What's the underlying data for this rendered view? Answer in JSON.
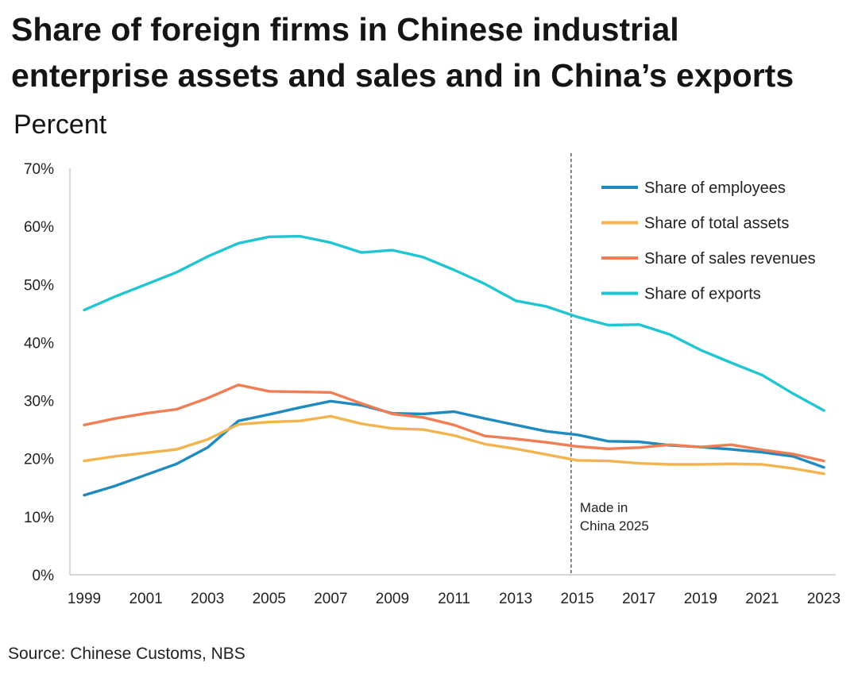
{
  "title": "Share of foreign firms in Chinese industrial enterprise assets and sales and in China’s exports",
  "subtitle": "Percent",
  "source": "Source: Chinese Customs, NBS",
  "annotation": {
    "line1": "Made in",
    "line2": "China 2025",
    "x": 2014.8
  },
  "chart_data": {
    "type": "line",
    "title": "Share of foreign firms in Chinese industrial enterprise assets and sales and in China’s exports",
    "subtitle": "Percent",
    "x": [
      1999,
      2000,
      2001,
      2002,
      2003,
      2004,
      2005,
      2006,
      2007,
      2008,
      2009,
      2010,
      2011,
      2012,
      2013,
      2014,
      2015,
      2016,
      2017,
      2018,
      2019,
      2020,
      2021,
      2022,
      2023
    ],
    "x_ticks": [
      "1999",
      "2001",
      "2003",
      "2005",
      "2007",
      "2009",
      "2011",
      "2013",
      "2015",
      "2017",
      "2019",
      "2021",
      "2023"
    ],
    "ylim": [
      0,
      70
    ],
    "y_ticks": [
      "0%",
      "10%",
      "20%",
      "30%",
      "40%",
      "50%",
      "60%",
      "70%"
    ],
    "legend_position": "top-right",
    "grid": false,
    "series": [
      {
        "name": "Share of employees",
        "color": "#1f8ac0",
        "values": [
          13.7,
          15.3,
          17.2,
          19.1,
          21.9,
          26.5,
          27.6,
          28.8,
          29.9,
          29.2,
          27.8,
          27.7,
          28.1,
          26.9,
          25.8,
          24.7,
          24.1,
          23.0,
          22.9,
          22.3,
          22.0,
          21.6,
          21.1,
          20.4,
          18.5
        ]
      },
      {
        "name": "Share of total assets",
        "color": "#f3b44f",
        "values": [
          19.6,
          20.4,
          21.0,
          21.6,
          23.3,
          25.9,
          26.3,
          26.5,
          27.3,
          26.0,
          25.2,
          25.0,
          24.0,
          22.5,
          21.7,
          20.7,
          19.7,
          19.6,
          19.2,
          19.0,
          19.0,
          19.1,
          19.0,
          18.3,
          17.4
        ]
      },
      {
        "name": "Share of sales revenues",
        "color": "#f07d54",
        "values": [
          25.8,
          26.9,
          27.8,
          28.5,
          30.4,
          32.7,
          31.6,
          31.5,
          31.4,
          29.5,
          27.7,
          27.1,
          25.8,
          23.9,
          23.4,
          22.8,
          22.1,
          21.7,
          21.9,
          22.4,
          22.0,
          22.4,
          21.5,
          20.8,
          19.6
        ]
      },
      {
        "name": "Share of exports",
        "color": "#1fc6d2",
        "values": [
          45.6,
          47.9,
          50.0,
          52.1,
          54.8,
          57.1,
          58.2,
          58.3,
          57.2,
          55.5,
          55.9,
          54.7,
          52.5,
          50.1,
          47.2,
          46.2,
          44.4,
          43.0,
          43.1,
          41.4,
          38.7,
          36.5,
          34.4,
          31.2,
          28.3
        ]
      }
    ]
  }
}
